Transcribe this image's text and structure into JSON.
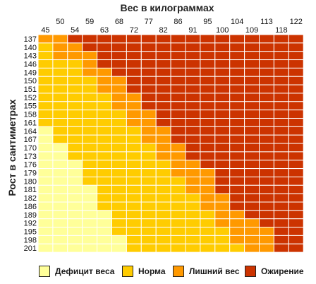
{
  "chart_data": {
    "type": "heatmap",
    "title": "Вес в килограммах",
    "xlabel": "Вес в килограммах",
    "ylabel": "Рост в сантиметрах",
    "weights": [
      "45",
      "50",
      "54",
      "59",
      "63",
      "68",
      "72",
      "77",
      "82",
      "86",
      "91",
      "95",
      "100",
      "104",
      "109",
      "113",
      "118",
      "122"
    ],
    "heights": [
      "137",
      "140",
      "143",
      "146",
      "149",
      "150",
      "151",
      "152",
      "155",
      "158",
      "161",
      "164",
      "167",
      "170",
      "173",
      "176",
      "179",
      "180",
      "181",
      "182",
      "186",
      "189",
      "192",
      "195",
      "198",
      "201"
    ],
    "categories": [
      "Дефицит веса",
      "Норма",
      "Лишний вес",
      "Ожирение"
    ],
    "colors": [
      "#FFFF99",
      "#FFCC00",
      "#FF9900",
      "#CC3300"
    ],
    "grid": [
      [
        2,
        2,
        3,
        3,
        3,
        3,
        3,
        3,
        3,
        3,
        3,
        3,
        3,
        3,
        3,
        3,
        3,
        3
      ],
      [
        1,
        2,
        2,
        3,
        3,
        3,
        3,
        3,
        3,
        3,
        3,
        3,
        3,
        3,
        3,
        3,
        3,
        3
      ],
      [
        1,
        2,
        2,
        2,
        3,
        3,
        3,
        3,
        3,
        3,
        3,
        3,
        3,
        3,
        3,
        3,
        3,
        3
      ],
      [
        1,
        1,
        1,
        2,
        3,
        3,
        3,
        3,
        3,
        3,
        3,
        3,
        3,
        3,
        3,
        3,
        3,
        3
      ],
      [
        1,
        1,
        1,
        2,
        2,
        3,
        3,
        3,
        3,
        3,
        3,
        3,
        3,
        3,
        3,
        3,
        3,
        3
      ],
      [
        1,
        1,
        1,
        1,
        2,
        2,
        3,
        3,
        3,
        3,
        3,
        3,
        3,
        3,
        3,
        3,
        3,
        3
      ],
      [
        1,
        1,
        1,
        1,
        2,
        2,
        3,
        3,
        3,
        3,
        3,
        3,
        3,
        3,
        3,
        3,
        3,
        3
      ],
      [
        1,
        1,
        1,
        1,
        1,
        2,
        2,
        3,
        3,
        3,
        3,
        3,
        3,
        3,
        3,
        3,
        3,
        3
      ],
      [
        1,
        1,
        1,
        1,
        1,
        2,
        2,
        3,
        3,
        3,
        3,
        3,
        3,
        3,
        3,
        3,
        3,
        3
      ],
      [
        1,
        1,
        1,
        1,
        1,
        1,
        2,
        2,
        3,
        3,
        3,
        3,
        3,
        3,
        3,
        3,
        3,
        3
      ],
      [
        1,
        1,
        1,
        1,
        1,
        1,
        2,
        2,
        3,
        3,
        3,
        3,
        3,
        3,
        3,
        3,
        3,
        3
      ],
      [
        0,
        1,
        1,
        1,
        1,
        1,
        1,
        2,
        2,
        3,
        3,
        3,
        3,
        3,
        3,
        3,
        3,
        3
      ],
      [
        0,
        1,
        1,
        1,
        1,
        1,
        1,
        2,
        2,
        3,
        3,
        3,
        3,
        3,
        3,
        3,
        3,
        3
      ],
      [
        0,
        0,
        1,
        1,
        1,
        1,
        1,
        1,
        2,
        2,
        3,
        3,
        3,
        3,
        3,
        3,
        3,
        3
      ],
      [
        0,
        0,
        1,
        1,
        1,
        1,
        1,
        1,
        2,
        2,
        3,
        3,
        3,
        3,
        3,
        3,
        3,
        3
      ],
      [
        0,
        0,
        0,
        1,
        1,
        1,
        1,
        1,
        1,
        2,
        2,
        3,
        3,
        3,
        3,
        3,
        3,
        3
      ],
      [
        0,
        0,
        0,
        1,
        1,
        1,
        1,
        1,
        1,
        2,
        2,
        2,
        3,
        3,
        3,
        3,
        3,
        3
      ],
      [
        0,
        0,
        0,
        1,
        1,
        1,
        1,
        1,
        1,
        1,
        2,
        2,
        3,
        3,
        3,
        3,
        3,
        3
      ],
      [
        0,
        0,
        0,
        0,
        1,
        1,
        1,
        1,
        1,
        1,
        2,
        2,
        3,
        3,
        3,
        3,
        3,
        3
      ],
      [
        0,
        0,
        0,
        0,
        1,
        1,
        1,
        1,
        1,
        1,
        1,
        2,
        2,
        3,
        3,
        3,
        3,
        3
      ],
      [
        0,
        0,
        0,
        0,
        1,
        1,
        1,
        1,
        1,
        1,
        1,
        2,
        2,
        3,
        3,
        3,
        3,
        3
      ],
      [
        0,
        0,
        0,
        0,
        0,
        1,
        1,
        1,
        1,
        1,
        1,
        1,
        2,
        2,
        3,
        3,
        3,
        3
      ],
      [
        0,
        0,
        0,
        0,
        0,
        1,
        1,
        1,
        1,
        1,
        1,
        1,
        2,
        2,
        2,
        3,
        3,
        3
      ],
      [
        0,
        0,
        0,
        0,
        0,
        1,
        1,
        1,
        1,
        1,
        1,
        1,
        1,
        2,
        2,
        2,
        3,
        3
      ],
      [
        0,
        0,
        0,
        0,
        0,
        0,
        1,
        1,
        1,
        1,
        1,
        1,
        1,
        2,
        2,
        2,
        3,
        3
      ],
      [
        0,
        0,
        0,
        0,
        0,
        0,
        1,
        1,
        1,
        1,
        1,
        1,
        1,
        1,
        2,
        2,
        3,
        3
      ]
    ],
    "legend_position": "bottom",
    "grid_lines": true
  }
}
